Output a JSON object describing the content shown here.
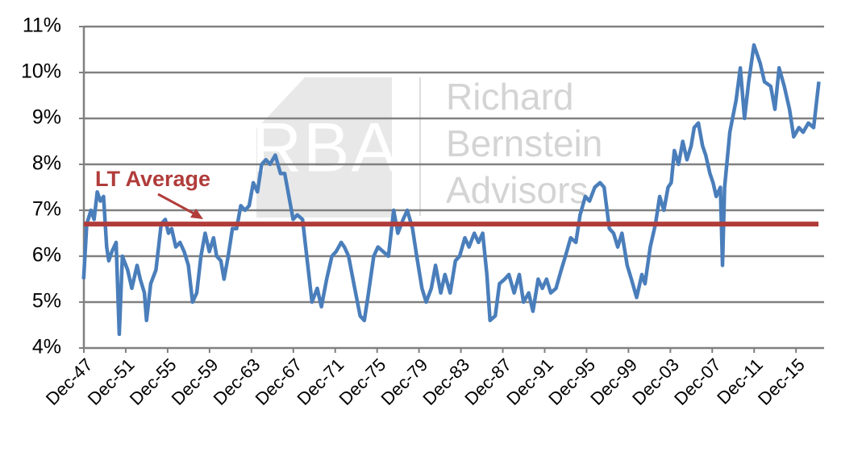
{
  "chart_data": {
    "type": "line",
    "x": [
      1947.9,
      1948.2,
      1948.6,
      1948.9,
      1949.2,
      1949.5,
      1949.8,
      1950.1,
      1950.3,
      1950.6,
      1951.0,
      1951.3,
      1951.6,
      1952.1,
      1952.5,
      1953.0,
      1953.3,
      1953.7,
      1953.9,
      1954.3,
      1954.8,
      1955.3,
      1955.7,
      1956.0,
      1956.3,
      1956.7,
      1957.1,
      1957.5,
      1957.9,
      1958.3,
      1958.7,
      1959.1,
      1959.5,
      1959.9,
      1960.3,
      1960.6,
      1961.0,
      1961.3,
      1961.7,
      1962.1,
      1962.5,
      1962.9,
      1963.3,
      1963.7,
      1964.1,
      1964.5,
      1964.9,
      1965.3,
      1965.7,
      1966.2,
      1966.7,
      1967.1,
      1967.5,
      1967.9,
      1968.3,
      1968.8,
      1969.2,
      1969.7,
      1970.2,
      1970.6,
      1971.1,
      1971.6,
      1972.0,
      1972.5,
      1972.8,
      1973.2,
      1973.7,
      1974.3,
      1974.7,
      1975.1,
      1975.6,
      1976.0,
      1976.5,
      1977.0,
      1977.5,
      1977.9,
      1978.4,
      1978.8,
      1979.3,
      1979.7,
      1980.2,
      1980.6,
      1981.1,
      1981.5,
      1982.0,
      1982.4,
      1982.9,
      1983.4,
      1983.8,
      1984.3,
      1984.7,
      1985.2,
      1985.6,
      1986.0,
      1986.4,
      1986.7,
      1987.2,
      1987.6,
      1988.1,
      1988.5,
      1989.0,
      1989.5,
      1989.9,
      1990.4,
      1990.8,
      1991.3,
      1991.7,
      1992.1,
      1992.5,
      1993.0,
      1993.5,
      1993.9,
      1994.4,
      1994.9,
      1995.3,
      1995.8,
      1996.2,
      1996.7,
      1997.2,
      1997.6,
      1998.1,
      1998.5,
      1998.9,
      1999.3,
      1999.8,
      2000.2,
      2000.7,
      2001.2,
      2001.5,
      2002.0,
      2002.5,
      2002.9,
      2003.3,
      2003.7,
      2004.0,
      2004.3,
      2004.7,
      2005.1,
      2005.5,
      2005.9,
      2006.2,
      2006.6,
      2007.0,
      2007.3,
      2007.7,
      2008.0,
      2008.3,
      2008.7,
      2008.9,
      2009.1,
      2009.6,
      2010.2,
      2010.6,
      2011.0,
      2011.4,
      2011.9,
      2012.5,
      2012.9,
      2013.5,
      2013.9,
      2014.3,
      2014.8,
      2015.3,
      2015.7,
      2016.2,
      2016.6,
      2017.1,
      2017.6,
      2018.1
    ],
    "series": [
      {
        "color": "#4a7ebb",
        "values": [
          5.5,
          6.7,
          7.0,
          6.8,
          7.4,
          7.2,
          7.3,
          6.2,
          5.9,
          6.1,
          6.3,
          4.3,
          6.0,
          5.7,
          5.3,
          5.8,
          5.5,
          5.2,
          4.6,
          5.4,
          5.7,
          6.7,
          6.8,
          6.5,
          6.6,
          6.2,
          6.3,
          6.1,
          5.8,
          5.0,
          5.2,
          6.0,
          6.5,
          6.1,
          6.4,
          6.0,
          5.9,
          5.5,
          6.0,
          6.6,
          6.6,
          7.1,
          7.0,
          7.1,
          7.6,
          7.4,
          8.0,
          8.1,
          8.0,
          8.2,
          7.8,
          7.8,
          7.3,
          6.8,
          6.9,
          6.8,
          6.0,
          5.0,
          5.3,
          4.9,
          5.5,
          6.0,
          6.1,
          6.3,
          6.2,
          6.0,
          5.4,
          4.7,
          4.6,
          5.2,
          6.0,
          6.2,
          6.1,
          6.0,
          7.0,
          6.5,
          6.8,
          7.0,
          6.6,
          6.0,
          5.3,
          5.0,
          5.3,
          5.8,
          5.2,
          5.6,
          5.2,
          5.9,
          6.0,
          6.4,
          6.2,
          6.5,
          6.3,
          6.5,
          5.6,
          4.6,
          4.7,
          5.4,
          5.5,
          5.6,
          5.2,
          5.6,
          5.0,
          5.2,
          4.8,
          5.5,
          5.3,
          5.5,
          5.2,
          5.3,
          5.7,
          6.0,
          6.4,
          6.3,
          6.9,
          7.3,
          7.2,
          7.5,
          7.6,
          7.5,
          6.6,
          6.5,
          6.2,
          6.5,
          5.8,
          5.5,
          5.1,
          5.6,
          5.4,
          6.2,
          6.7,
          7.3,
          7.0,
          7.5,
          7.6,
          8.3,
          8.0,
          8.5,
          8.1,
          8.4,
          8.8,
          8.9,
          8.4,
          8.2,
          7.8,
          7.6,
          7.3,
          7.5,
          5.8,
          7.5,
          8.7,
          9.4,
          10.1,
          9.0,
          9.8,
          10.6,
          10.2,
          9.8,
          9.7,
          9.2,
          10.1,
          9.7,
          9.2,
          8.6,
          8.8,
          8.7,
          8.9,
          8.8,
          9.8
        ]
      }
    ],
    "xlim": [
      1947.92,
      2018.6
    ],
    "xticks": [
      {
        "value": 1947.92,
        "label": "Dec-47"
      },
      {
        "value": 1951.92,
        "label": "Dec-51"
      },
      {
        "value": 1955.92,
        "label": "Dec-55"
      },
      {
        "value": 1959.92,
        "label": "Dec-59"
      },
      {
        "value": 1963.92,
        "label": "Dec-63"
      },
      {
        "value": 1967.92,
        "label": "Dec-67"
      },
      {
        "value": 1971.92,
        "label": "Dec-71"
      },
      {
        "value": 1975.92,
        "label": "Dec-75"
      },
      {
        "value": 1979.92,
        "label": "Dec-79"
      },
      {
        "value": 1983.92,
        "label": "Dec-83"
      },
      {
        "value": 1987.92,
        "label": "Dec-87"
      },
      {
        "value": 1991.92,
        "label": "Dec-91"
      },
      {
        "value": 1995.92,
        "label": "Dec-95"
      },
      {
        "value": 1999.92,
        "label": "Dec-99"
      },
      {
        "value": 2003.92,
        "label": "Dec-03"
      },
      {
        "value": 2007.92,
        "label": "Dec-07"
      },
      {
        "value": 2011.92,
        "label": "Dec-11"
      },
      {
        "value": 2015.92,
        "label": "Dec-15"
      }
    ],
    "ylim": [
      4,
      11
    ],
    "yticks": [
      {
        "value": 4,
        "label": "4%"
      },
      {
        "value": 5,
        "label": "5%"
      },
      {
        "value": 6,
        "label": "6%"
      },
      {
        "value": 7,
        "label": "7%"
      },
      {
        "value": 8,
        "label": "8%"
      },
      {
        "value": 9,
        "label": "9%"
      },
      {
        "value": 10,
        "label": "10%"
      },
      {
        "value": 11,
        "label": "11%"
      }
    ],
    "grid": true,
    "reference_line": {
      "value": 6.7,
      "color": "#b03c3a",
      "label": "LT Average"
    },
    "watermark": {
      "logo": "RBA",
      "lines": [
        "Richard",
        "Bernstein",
        "Advisors"
      ]
    }
  }
}
